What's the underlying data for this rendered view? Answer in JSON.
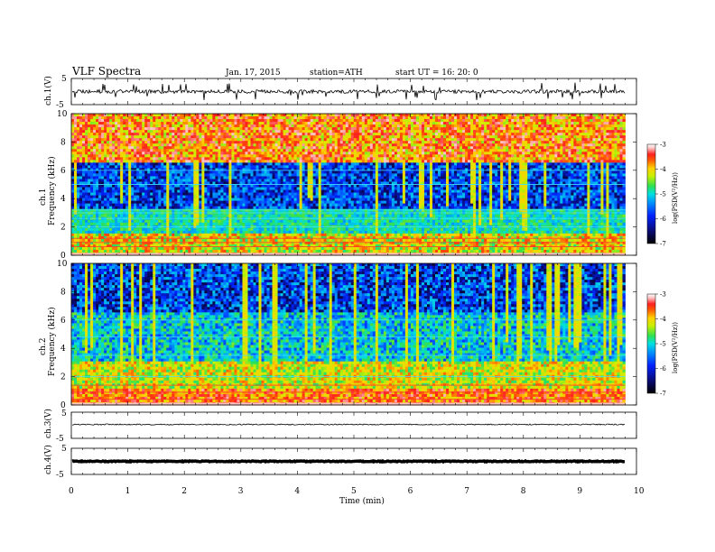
{
  "header": {
    "title": "VLF  Spectra",
    "date": "Jan. 17, 2015",
    "station": "station=ATH",
    "start": "start  UT =   16: 20: 0"
  },
  "chart_data": {
    "type": "heatmap",
    "xlabel": "Time  (min)",
    "xlim": [
      0,
      10
    ],
    "xticks": [
      "0",
      "1",
      "2",
      "3",
      "4",
      "5",
      "6",
      "7",
      "8",
      "9",
      "10"
    ],
    "data_end_min": 9.8,
    "panels": [
      {
        "id": "ch1-waveform",
        "kind": "waveform",
        "ylabel": "ch.1(V)",
        "yticks": [
          "5",
          "-5"
        ],
        "ylim": [
          -5,
          5
        ],
        "baseline": 0,
        "color": "#000000"
      },
      {
        "id": "ch1-spectrogram",
        "kind": "spectrogram",
        "ylabel": "ch.1 Frequency  (kHz)",
        "yticks": [
          "0",
          "2",
          "4",
          "6",
          "8",
          "10"
        ],
        "ylim": [
          0,
          10
        ],
        "colorbar": {
          "label": "log(PSD(V²/Hz))",
          "ticks": [
            "-3",
            "-4",
            "-5",
            "-6",
            "-7"
          ],
          "range": [
            -7,
            -3
          ]
        }
      },
      {
        "id": "ch2-spectrogram",
        "kind": "spectrogram",
        "ylabel": "ch.2 Frequency  (kHz)",
        "yticks": [
          "0",
          "2",
          "4",
          "6",
          "8",
          "10"
        ],
        "ylim": [
          0,
          10
        ],
        "colorbar": {
          "label": "log(PSD(V²/Hz))",
          "ticks": [
            "-3",
            "-4",
            "-5",
            "-6",
            "-7"
          ],
          "range": [
            -7,
            -3
          ]
        }
      },
      {
        "id": "ch3-waveform",
        "kind": "waveform",
        "ylabel": "ch.3(V)",
        "yticks": [
          "5",
          "-5"
        ],
        "ylim": [
          -5,
          5
        ],
        "baseline": 0.3,
        "color": "#000000"
      },
      {
        "id": "ch4-waveform",
        "kind": "waveform",
        "ylabel": "ch.4(V)",
        "yticks": [
          "5",
          "-5"
        ],
        "ylim": [
          -5,
          5
        ],
        "baseline": 0,
        "color": "#000000"
      }
    ],
    "colormap": [
      "#000000",
      "#0a0a6e",
      "#0022ff",
      "#0088ff",
      "#00e0e0",
      "#30e050",
      "#c8f000",
      "#ffd000",
      "#ff5a00",
      "#ff2020",
      "#ffbfbf",
      "#ffffff"
    ]
  }
}
